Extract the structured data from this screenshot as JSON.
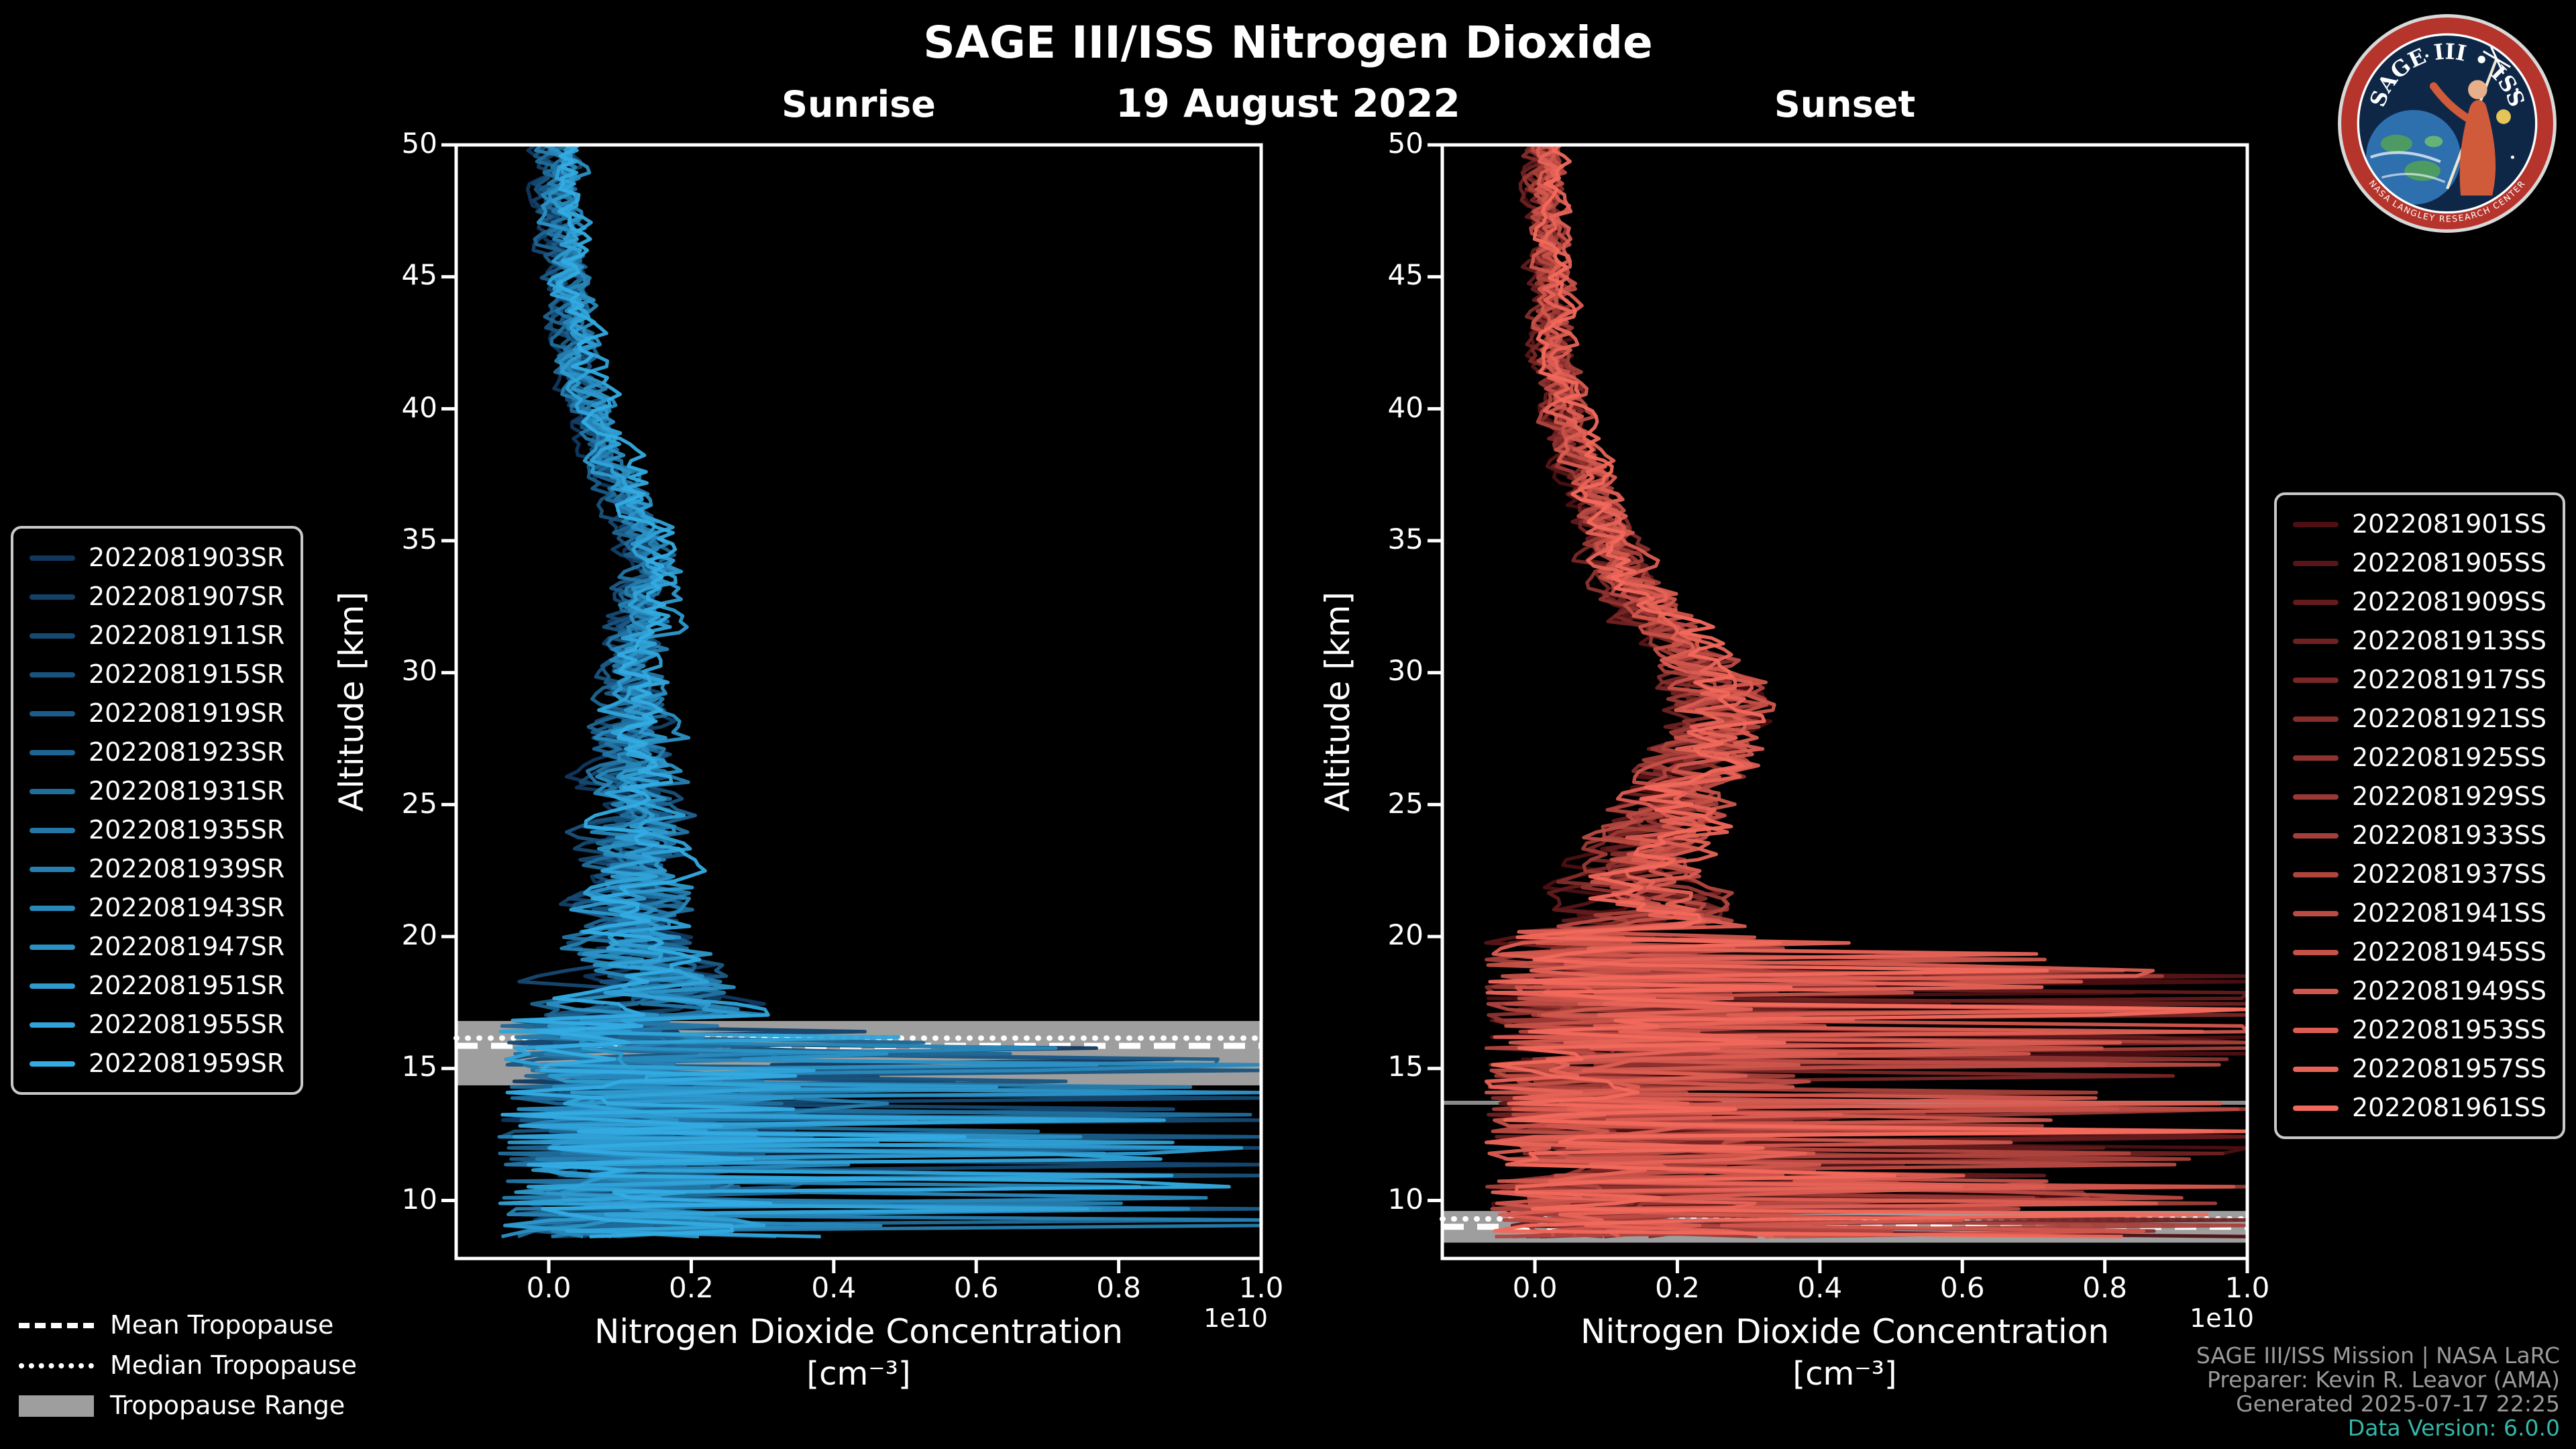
{
  "figure": {
    "title": "SAGE III/ISS Nitrogen Dioxide",
    "date": "19 August 2022"
  },
  "colors": {
    "background": "#000000",
    "text": "#ffffff",
    "credits_gray": "#9a9a9a",
    "data_version_teal": "#35b8a8",
    "tropopause_gray": "#9e9e9e"
  },
  "axes": {
    "ylabel": "Altitude [km]",
    "xlabel_line1": "Nitrogen Dioxide Concentration",
    "xlabel_line2": "[cm⁻³]",
    "offset_label": "1e10",
    "y_ticks": [
      10,
      15,
      20,
      25,
      30,
      35,
      40,
      45,
      50
    ],
    "x_tick_values": [
      0.0,
      0.2,
      0.4,
      0.6,
      0.8,
      1.0
    ],
    "x_tick_labels": [
      "0.0",
      "0.2",
      "0.4",
      "0.6",
      "0.8",
      "1.0"
    ]
  },
  "chart_data": [
    {
      "type": "line",
      "panel": "sunrise",
      "title": "Sunrise",
      "xlabel": "Nitrogen Dioxide Concentration [cm⁻³] (x 1e10)",
      "ylabel": "Altitude [km]",
      "xlim": [
        -0.13,
        1.0
      ],
      "ylim": [
        7.8,
        50
      ],
      "color_start": "#10385f",
      "color_end": "#33ace3",
      "series": [
        "2022081903SR",
        "2022081907SR",
        "2022081911SR",
        "2022081915SR",
        "2022081919SR",
        "2022081923SR",
        "2022081931SR",
        "2022081935SR",
        "2022081939SR",
        "2022081943SR",
        "2022081947SR",
        "2022081951SR",
        "2022081955SR",
        "2022081959SR"
      ],
      "base_profile": [
        [
          50,
          0.01
        ],
        [
          48,
          0.015
        ],
        [
          46,
          0.02
        ],
        [
          44,
          0.03
        ],
        [
          42,
          0.04
        ],
        [
          40,
          0.06
        ],
        [
          38,
          0.09
        ],
        [
          36,
          0.12
        ],
        [
          34,
          0.14
        ],
        [
          32,
          0.13
        ],
        [
          30,
          0.12
        ],
        [
          28,
          0.12
        ],
        [
          26,
          0.12
        ],
        [
          24,
          0.12
        ],
        [
          22,
          0.12
        ],
        [
          20,
          0.12
        ],
        [
          18,
          0.13
        ],
        [
          17,
          0.15
        ],
        [
          16.9,
          0.17
        ]
      ],
      "noise_profile": [
        [
          50,
          0.02
        ],
        [
          45,
          0.02
        ],
        [
          40,
          0.02
        ],
        [
          35,
          0.025
        ],
        [
          30,
          0.03
        ],
        [
          25,
          0.045
        ],
        [
          20,
          0.06
        ],
        [
          18,
          0.08
        ],
        [
          16.9,
          0.1
        ]
      ],
      "chaos": {
        "start_alt": 16.9,
        "ramp": 1.5,
        "max": 1.05
      },
      "tropopause": {
        "mean": 15.86,
        "median": 16.15,
        "range": [
          14.36,
          16.8
        ]
      },
      "seed": 20220819
    },
    {
      "type": "line",
      "panel": "sunset",
      "title": "Sunset",
      "xlabel": "Nitrogen Dioxide Concentration [cm⁻³] (x 1e10)",
      "ylabel": "Altitude [km]",
      "xlim": [
        -0.13,
        1.0
      ],
      "ylim": [
        7.8,
        50
      ],
      "color_start": "#4d0f12",
      "color_end": "#f2695c",
      "series": [
        "2022081901SS",
        "2022081905SS",
        "2022081909SS",
        "2022081913SS",
        "2022081917SS",
        "2022081921SS",
        "2022081925SS",
        "2022081929SS",
        "2022081933SS",
        "2022081937SS",
        "2022081941SS",
        "2022081945SS",
        "2022081949SS",
        "2022081953SS",
        "2022081957SS",
        "2022081961SS"
      ],
      "base_profile": [
        [
          50,
          0.01
        ],
        [
          48,
          0.015
        ],
        [
          46,
          0.02
        ],
        [
          44,
          0.025
        ],
        [
          42,
          0.03
        ],
        [
          40,
          0.04
        ],
        [
          38,
          0.06
        ],
        [
          36,
          0.09
        ],
        [
          34,
          0.12
        ],
        [
          32,
          0.17
        ],
        [
          31,
          0.2
        ],
        [
          30,
          0.24
        ],
        [
          29,
          0.26
        ],
        [
          28,
          0.27
        ],
        [
          27,
          0.24
        ],
        [
          26,
          0.21
        ],
        [
          25,
          0.19
        ],
        [
          24,
          0.17
        ],
        [
          23,
          0.16
        ],
        [
          22,
          0.15
        ],
        [
          21,
          0.15
        ],
        [
          20.2,
          0.16
        ]
      ],
      "noise_profile": [
        [
          50,
          0.015
        ],
        [
          45,
          0.018
        ],
        [
          40,
          0.02
        ],
        [
          35,
          0.025
        ],
        [
          30,
          0.04
        ],
        [
          28,
          0.05
        ],
        [
          25,
          0.05
        ],
        [
          22,
          0.06
        ],
        [
          20.2,
          0.08
        ]
      ],
      "chaos": {
        "start_alt": 20.2,
        "ramp": 1.5,
        "max": 1.05
      },
      "tropopause": {
        "mean": 9.0,
        "median": 9.3,
        "range": [
          8.4,
          9.6
        ],
        "extra_line": 13.7
      },
      "seed": 819
    }
  ],
  "tropopause_legend": {
    "mean": "Mean Tropopause",
    "median": "Median Tropopause",
    "range": "Tropopause Range"
  },
  "credits": [
    "SAGE III/ISS Mission | NASA LaRC",
    "Preparer: Kevin R. Leavor (AMA)",
    "Generated 2025-07-17 22:25",
    "Data Version: 6.0.0"
  ],
  "logo": {
    "title": "SAGE III • ISS",
    "arc_bottom": "NASA LANGLEY RESEARCH CENTER"
  }
}
